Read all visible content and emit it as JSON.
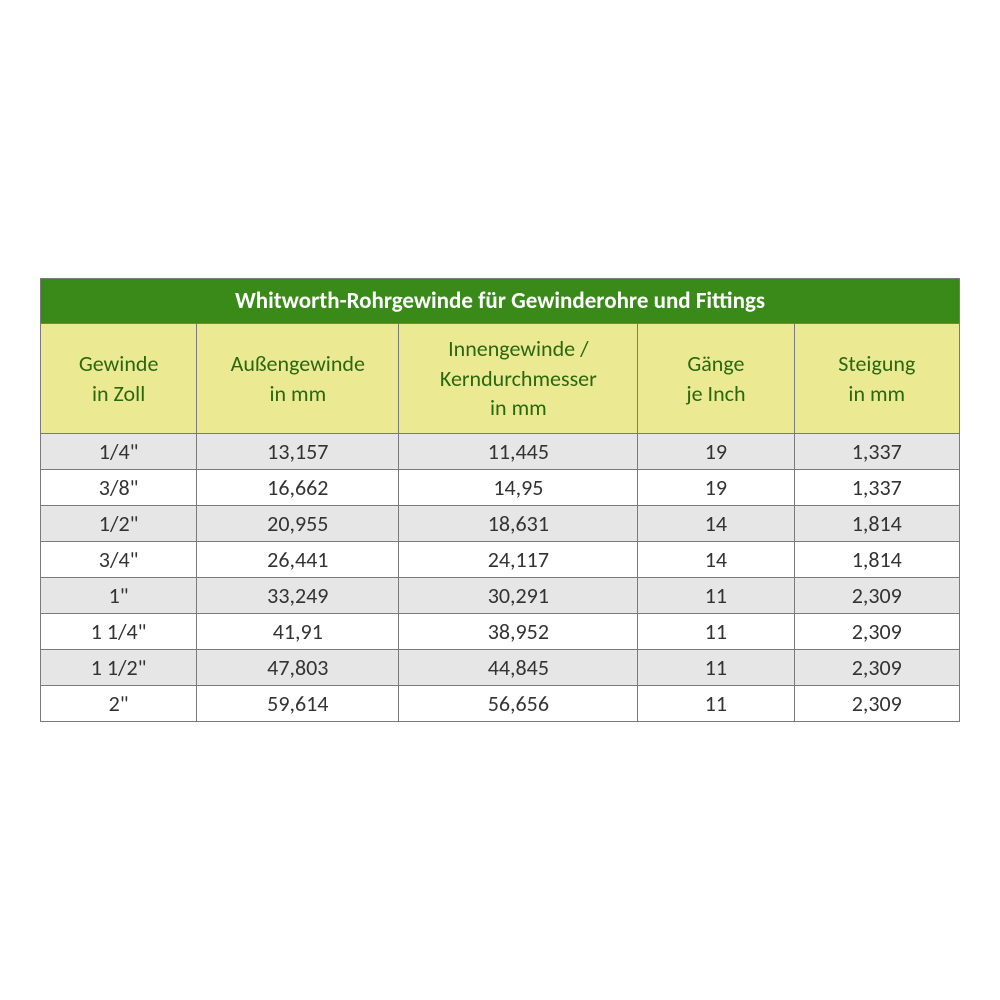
{
  "table": {
    "title": "Whitworth-Rohrgewinde für Gewinderohre und Fittings",
    "title_bg": "#3a8a1a",
    "title_color": "#ffffff",
    "header_bg": "#ece993",
    "header_color": "#2a6810",
    "row_odd_bg": "#e6e6e6",
    "row_even_bg": "#ffffff",
    "border_color": "#7a7a7a",
    "font_size_title": 23,
    "font_size_header": 22,
    "font_size_body": 22,
    "columns": [
      {
        "label_l1": "Gewinde",
        "label_l2": "in Zoll",
        "width_pct": 17
      },
      {
        "label_l1": "Außengewinde",
        "label_l2": "in mm",
        "width_pct": 22
      },
      {
        "label_l1": "Innengewinde /",
        "label_l2": "Kerndurchmesser",
        "label_l3": "in mm",
        "width_pct": 26
      },
      {
        "label_l1": "Gänge",
        "label_l2": "je Inch",
        "width_pct": 17
      },
      {
        "label_l1": "Steigung",
        "label_l2": "in mm",
        "width_pct": 18
      }
    ],
    "rows": [
      [
        "1/4\"",
        "13,157",
        "11,445",
        "19",
        "1,337"
      ],
      [
        "3/8\"",
        "16,662",
        "14,95",
        "19",
        "1,337"
      ],
      [
        "1/2\"",
        "20,955",
        "18,631",
        "14",
        "1,814"
      ],
      [
        "3/4\"",
        "26,441",
        "24,117",
        "14",
        "1,814"
      ],
      [
        "1\"",
        "33,249",
        "30,291",
        "11",
        "2,309"
      ],
      [
        "1 1/4\"",
        "41,91",
        "38,952",
        "11",
        "2,309"
      ],
      [
        "1 1/2\"",
        "47,803",
        "44,845",
        "11",
        "2,309"
      ],
      [
        "2\"",
        "59,614",
        "56,656",
        "11",
        "2,309"
      ]
    ]
  }
}
